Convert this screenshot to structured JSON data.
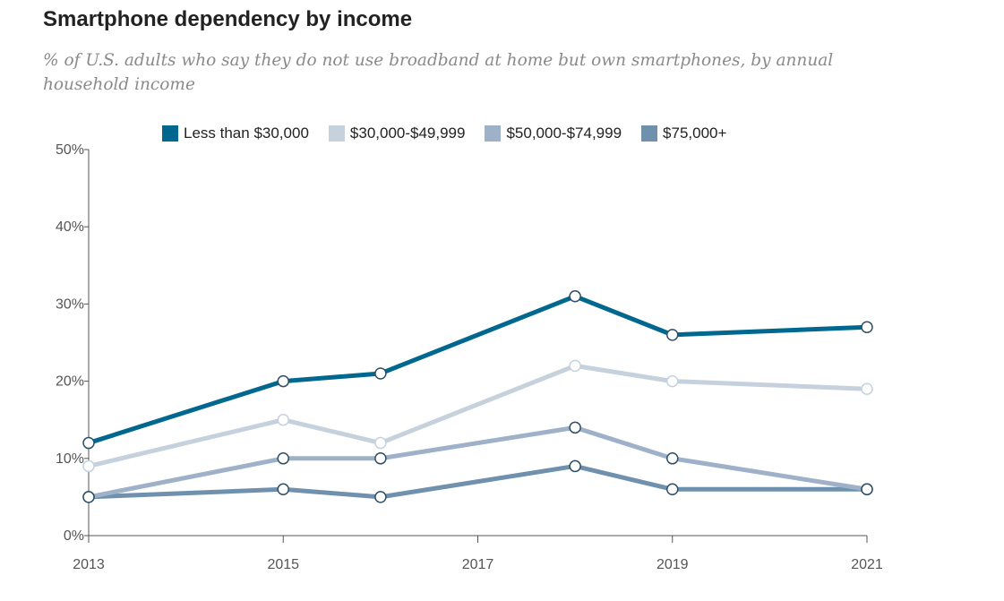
{
  "title": "Smartphone dependency by income",
  "subtitle": "% of U.S. adults who say they do not use broadband at home but own smartphones, by annual household income",
  "chart_data": {
    "type": "line",
    "title": "Smartphone dependency by income",
    "subtitle": "% of U.S. adults who say they do not use broadband at home but own smartphones, by annual household income",
    "x": [
      2013,
      2015,
      2016,
      2018,
      2019,
      2021
    ],
    "x_ticks": [
      2013,
      2015,
      2017,
      2019,
      2021
    ],
    "ylim": [
      0,
      50
    ],
    "y_ticks": [
      0,
      10,
      20,
      30,
      40,
      50
    ],
    "y_tick_labels": [
      "0%",
      "10%",
      "20%",
      "30%",
      "40%",
      "50%"
    ],
    "legend_position": "top",
    "grid": false,
    "series": [
      {
        "name": "Less than $30,000",
        "color": "#00688f",
        "values": [
          12,
          20,
          21,
          31,
          26,
          27
        ]
      },
      {
        "name": "$30,000-$49,999",
        "color": "#c6d1de",
        "values": [
          9,
          15,
          12,
          22,
          20,
          19
        ]
      },
      {
        "name": "$50,000-$74,999",
        "color": "#9fb1c8",
        "values": [
          5,
          10,
          10,
          14,
          10,
          6
        ]
      },
      {
        "name": "$75,000+",
        "color": "#6f91ae",
        "values": [
          5,
          6,
          5,
          9,
          6,
          6
        ]
      }
    ]
  }
}
